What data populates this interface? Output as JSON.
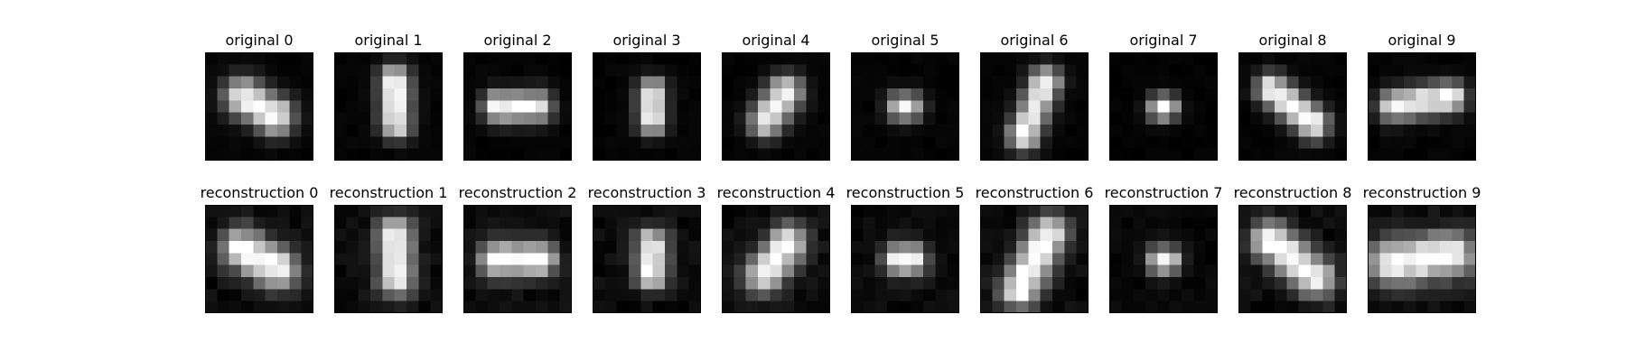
{
  "chart_data": {
    "type": "heatmap",
    "colormap": "gray",
    "value_range": [
      0,
      1
    ],
    "grid_size": [
      9,
      9
    ],
    "row_titles": [
      "original",
      "reconstruction"
    ],
    "panels": [
      {
        "row": 0,
        "title": "original 0",
        "shape": {
          "cx": 4,
          "cy": 4,
          "angle": -30,
          "length": 3.2,
          "width": 1.1
        },
        "noise": 0.03
      },
      {
        "row": 0,
        "title": "original 1",
        "shape": {
          "cx": 4.6,
          "cy": 3.6,
          "angle": 92,
          "length": 3.6,
          "width": 0.9
        },
        "noise": 0.03
      },
      {
        "row": 0,
        "title": "original 2",
        "shape": {
          "cx": 4,
          "cy": 4,
          "angle": 0,
          "length": 3.2,
          "width": 0.9
        },
        "noise": 0.03
      },
      {
        "row": 0,
        "title": "original 3",
        "shape": {
          "cx": 4.4,
          "cy": 4,
          "angle": 90,
          "length": 2.4,
          "width": 0.8
        },
        "noise": 0.03
      },
      {
        "row": 0,
        "title": "original 4",
        "shape": {
          "cx": 4,
          "cy": 4,
          "angle": 55,
          "length": 2.8,
          "width": 1.0
        },
        "noise": 0.03
      },
      {
        "row": 0,
        "title": "original 5",
        "shape": {
          "cx": 4,
          "cy": 4,
          "angle": 0,
          "length": 0.6,
          "width": 0.8
        },
        "noise": 0.03
      },
      {
        "row": 0,
        "title": "original 6",
        "shape": {
          "cx": 4,
          "cy": 4.2,
          "angle": 68,
          "length": 4.8,
          "width": 0.9
        },
        "noise": 0.03
      },
      {
        "row": 0,
        "title": "original 7",
        "shape": {
          "cx": 4,
          "cy": 4.1,
          "angle": 0,
          "length": 0.4,
          "width": 0.75
        },
        "noise": 0.02
      },
      {
        "row": 0,
        "title": "original 8",
        "shape": {
          "cx": 4,
          "cy": 4,
          "angle": -40,
          "length": 4.6,
          "width": 0.9
        },
        "noise": 0.03
      },
      {
        "row": 0,
        "title": "original 9",
        "shape": {
          "cx": 4,
          "cy": 3.6,
          "angle": 8,
          "length": 4.8,
          "width": 0.9
        },
        "noise": 0.03
      },
      {
        "row": 1,
        "title": "reconstruction 0",
        "shape": {
          "cx": 4,
          "cy": 4,
          "angle": -30,
          "length": 3.4,
          "width": 1.2
        },
        "noise": 0.08
      },
      {
        "row": 1,
        "title": "reconstruction 1",
        "shape": {
          "cx": 4.6,
          "cy": 3.8,
          "angle": 92,
          "length": 3.8,
          "width": 1.0
        },
        "noise": 0.08
      },
      {
        "row": 1,
        "title": "reconstruction 2",
        "shape": {
          "cx": 4,
          "cy": 4,
          "angle": 0,
          "length": 3.6,
          "width": 1.0
        },
        "noise": 0.08
      },
      {
        "row": 1,
        "title": "reconstruction 3",
        "shape": {
          "cx": 4.4,
          "cy": 4,
          "angle": 90,
          "length": 2.6,
          "width": 0.9
        },
        "noise": 0.08
      },
      {
        "row": 1,
        "title": "reconstruction 4",
        "shape": {
          "cx": 4,
          "cy": 4,
          "angle": 52,
          "length": 3.2,
          "width": 1.1
        },
        "noise": 0.08
      },
      {
        "row": 1,
        "title": "reconstruction 5",
        "shape": {
          "cx": 4,
          "cy": 4,
          "angle": 0,
          "length": 0.8,
          "width": 0.95
        },
        "noise": 0.07
      },
      {
        "row": 1,
        "title": "reconstruction 6",
        "shape": {
          "cx": 4,
          "cy": 4.2,
          "angle": 62,
          "length": 5.2,
          "width": 1.1
        },
        "noise": 0.08
      },
      {
        "row": 1,
        "title": "reconstruction 7",
        "shape": {
          "cx": 4,
          "cy": 4.1,
          "angle": 0,
          "length": 0.5,
          "width": 0.8
        },
        "noise": 0.05
      },
      {
        "row": 1,
        "title": "reconstruction 8",
        "shape": {
          "cx": 4,
          "cy": 4,
          "angle": -40,
          "length": 5.0,
          "width": 1.1
        },
        "noise": 0.09
      },
      {
        "row": 1,
        "title": "reconstruction 9",
        "shape": {
          "cx": 4,
          "cy": 4,
          "angle": 8,
          "length": 5.2,
          "width": 1.3
        },
        "noise": 0.09
      }
    ]
  }
}
